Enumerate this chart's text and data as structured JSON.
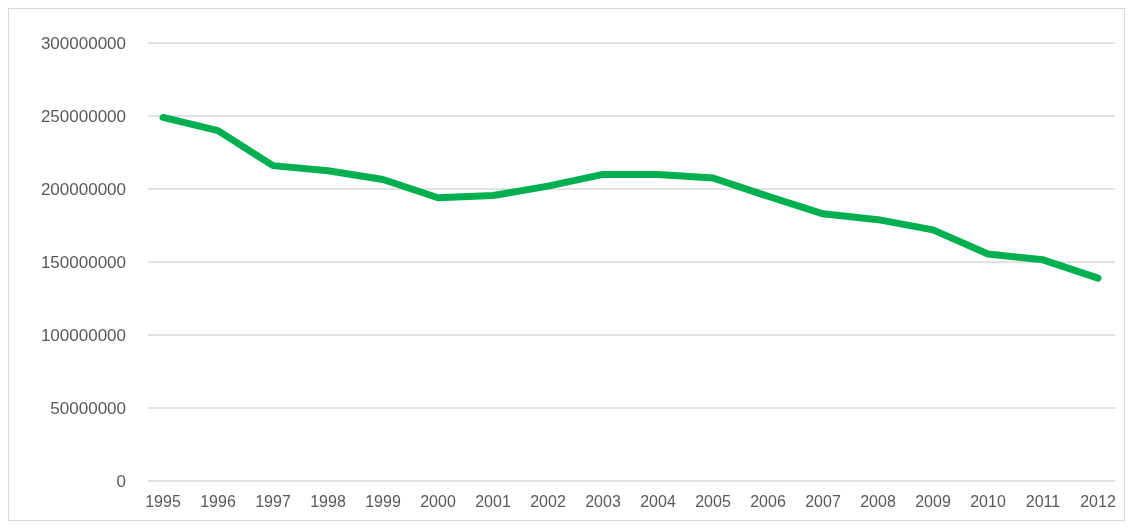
{
  "chart_data": {
    "type": "line",
    "categories": [
      "1995",
      "1996",
      "1997",
      "1998",
      "1999",
      "2000",
      "2001",
      "2002",
      "2003",
      "2004",
      "2005",
      "2006",
      "2007",
      "2008",
      "2009",
      "2010",
      "2011",
      "2012"
    ],
    "series": [
      {
        "color": "#00b050",
        "values": [
          249000000,
          240000000,
          216000000,
          212500000,
          206500000,
          194000000,
          195500000,
          202000000,
          210000000,
          210000000,
          207500000,
          195000000,
          183000000,
          179000000,
          172000000,
          155500000,
          151500000,
          139000000
        ]
      }
    ],
    "ylim": [
      0,
      300000000
    ],
    "yticks": [
      0,
      50000000,
      100000000,
      150000000,
      200000000,
      250000000,
      300000000
    ],
    "grid": "y",
    "marker": "none",
    "line_style": "solid"
  }
}
